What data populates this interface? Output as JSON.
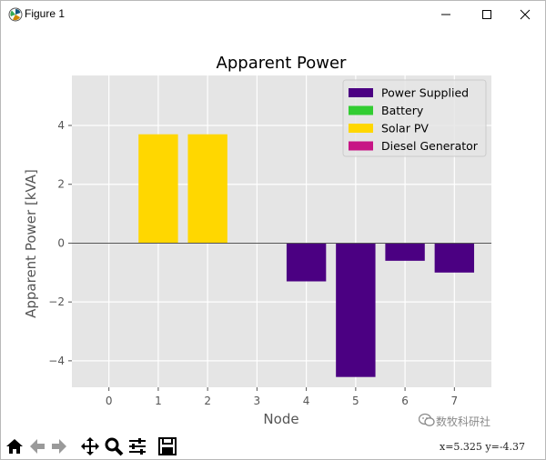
{
  "window": {
    "title": "Figure 1",
    "icons": {
      "app": "matplotlib-icon",
      "minimize": "minimize-icon",
      "maximize": "maximize-icon",
      "close": "close-icon"
    }
  },
  "toolbar": {
    "buttons": [
      "home-icon",
      "back-arrow-icon",
      "forward-arrow-icon",
      "pan-icon",
      "zoom-icon",
      "configure-subplots-icon",
      "save-icon"
    ],
    "coords": "x=5.325  y=-4.37"
  },
  "watermark": {
    "text": "数牧科研社",
    "icon": "wechat-icon"
  },
  "chart_data": {
    "type": "bar",
    "title": "Apparent Power",
    "xlabel": "Node",
    "ylabel": "Apparent Power [kVA]",
    "xticks": [
      0,
      1,
      2,
      3,
      4,
      5,
      6,
      7
    ],
    "yticks": [
      -4,
      -2,
      0,
      2,
      4
    ],
    "ytick_labels": [
      "−4",
      "−2",
      "0",
      "2",
      "4"
    ],
    "xlim": [
      -0.75,
      7.75
    ],
    "ylim": [
      -4.9,
      5.7
    ],
    "grid": true,
    "legend_position": "upper right",
    "colors": {
      "Power Supplied": "#4b0082",
      "Battery": "#32cd32",
      "Solar PV": "#ffd700",
      "Diesel Generator": "#c71585"
    },
    "series": [
      {
        "name": "Power Supplied",
        "x": [
          4,
          5,
          6,
          7
        ],
        "values": [
          -1.3,
          -4.55,
          -0.6,
          -1.0
        ]
      },
      {
        "name": "Battery",
        "x": [],
        "values": []
      },
      {
        "name": "Solar PV",
        "x": [
          1,
          2
        ],
        "values": [
          3.7,
          3.7
        ]
      },
      {
        "name": "Diesel Generator",
        "x": [],
        "values": []
      }
    ]
  }
}
